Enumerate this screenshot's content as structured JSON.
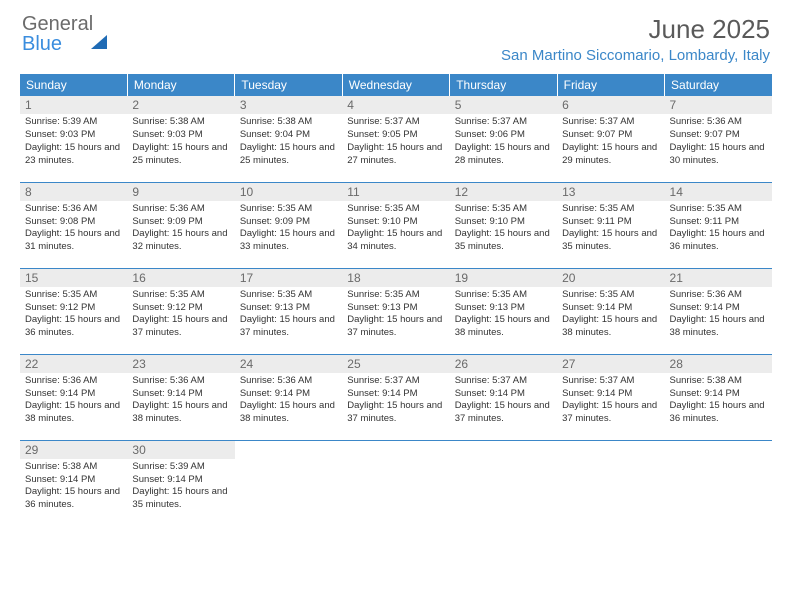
{
  "logo": {
    "text_gray": "General",
    "text_blue": "Blue"
  },
  "title": "June 2025",
  "location": "San Martino Siccomario, Lombardy, Italy",
  "colors": {
    "header_bg": "#3b87c8",
    "header_text": "#ffffff",
    "location_text": "#3b87c8",
    "title_text": "#5a5a5a",
    "daynum_bg": "#ececec",
    "cell_border": "#3b87c8",
    "body_text": "#333333"
  },
  "weekdays": [
    "Sunday",
    "Monday",
    "Tuesday",
    "Wednesday",
    "Thursday",
    "Friday",
    "Saturday"
  ],
  "days": [
    {
      "n": 1,
      "sunrise": "5:39 AM",
      "sunset": "9:03 PM",
      "daylight": "15 hours and 23 minutes."
    },
    {
      "n": 2,
      "sunrise": "5:38 AM",
      "sunset": "9:03 PM",
      "daylight": "15 hours and 25 minutes."
    },
    {
      "n": 3,
      "sunrise": "5:38 AM",
      "sunset": "9:04 PM",
      "daylight": "15 hours and 25 minutes."
    },
    {
      "n": 4,
      "sunrise": "5:37 AM",
      "sunset": "9:05 PM",
      "daylight": "15 hours and 27 minutes."
    },
    {
      "n": 5,
      "sunrise": "5:37 AM",
      "sunset": "9:06 PM",
      "daylight": "15 hours and 28 minutes."
    },
    {
      "n": 6,
      "sunrise": "5:37 AM",
      "sunset": "9:07 PM",
      "daylight": "15 hours and 29 minutes."
    },
    {
      "n": 7,
      "sunrise": "5:36 AM",
      "sunset": "9:07 PM",
      "daylight": "15 hours and 30 minutes."
    },
    {
      "n": 8,
      "sunrise": "5:36 AM",
      "sunset": "9:08 PM",
      "daylight": "15 hours and 31 minutes."
    },
    {
      "n": 9,
      "sunrise": "5:36 AM",
      "sunset": "9:09 PM",
      "daylight": "15 hours and 32 minutes."
    },
    {
      "n": 10,
      "sunrise": "5:35 AM",
      "sunset": "9:09 PM",
      "daylight": "15 hours and 33 minutes."
    },
    {
      "n": 11,
      "sunrise": "5:35 AM",
      "sunset": "9:10 PM",
      "daylight": "15 hours and 34 minutes."
    },
    {
      "n": 12,
      "sunrise": "5:35 AM",
      "sunset": "9:10 PM",
      "daylight": "15 hours and 35 minutes."
    },
    {
      "n": 13,
      "sunrise": "5:35 AM",
      "sunset": "9:11 PM",
      "daylight": "15 hours and 35 minutes."
    },
    {
      "n": 14,
      "sunrise": "5:35 AM",
      "sunset": "9:11 PM",
      "daylight": "15 hours and 36 minutes."
    },
    {
      "n": 15,
      "sunrise": "5:35 AM",
      "sunset": "9:12 PM",
      "daylight": "15 hours and 36 minutes."
    },
    {
      "n": 16,
      "sunrise": "5:35 AM",
      "sunset": "9:12 PM",
      "daylight": "15 hours and 37 minutes."
    },
    {
      "n": 17,
      "sunrise": "5:35 AM",
      "sunset": "9:13 PM",
      "daylight": "15 hours and 37 minutes."
    },
    {
      "n": 18,
      "sunrise": "5:35 AM",
      "sunset": "9:13 PM",
      "daylight": "15 hours and 37 minutes."
    },
    {
      "n": 19,
      "sunrise": "5:35 AM",
      "sunset": "9:13 PM",
      "daylight": "15 hours and 38 minutes."
    },
    {
      "n": 20,
      "sunrise": "5:35 AM",
      "sunset": "9:14 PM",
      "daylight": "15 hours and 38 minutes."
    },
    {
      "n": 21,
      "sunrise": "5:36 AM",
      "sunset": "9:14 PM",
      "daylight": "15 hours and 38 minutes."
    },
    {
      "n": 22,
      "sunrise": "5:36 AM",
      "sunset": "9:14 PM",
      "daylight": "15 hours and 38 minutes."
    },
    {
      "n": 23,
      "sunrise": "5:36 AM",
      "sunset": "9:14 PM",
      "daylight": "15 hours and 38 minutes."
    },
    {
      "n": 24,
      "sunrise": "5:36 AM",
      "sunset": "9:14 PM",
      "daylight": "15 hours and 38 minutes."
    },
    {
      "n": 25,
      "sunrise": "5:37 AM",
      "sunset": "9:14 PM",
      "daylight": "15 hours and 37 minutes."
    },
    {
      "n": 26,
      "sunrise": "5:37 AM",
      "sunset": "9:14 PM",
      "daylight": "15 hours and 37 minutes."
    },
    {
      "n": 27,
      "sunrise": "5:37 AM",
      "sunset": "9:14 PM",
      "daylight": "15 hours and 37 minutes."
    },
    {
      "n": 28,
      "sunrise": "5:38 AM",
      "sunset": "9:14 PM",
      "daylight": "15 hours and 36 minutes."
    },
    {
      "n": 29,
      "sunrise": "5:38 AM",
      "sunset": "9:14 PM",
      "daylight": "15 hours and 36 minutes."
    },
    {
      "n": 30,
      "sunrise": "5:39 AM",
      "sunset": "9:14 PM",
      "daylight": "15 hours and 35 minutes."
    }
  ],
  "labels": {
    "sunrise": "Sunrise:",
    "sunset": "Sunset:",
    "daylight": "Daylight:"
  },
  "layout": {
    "start_weekday": 0,
    "cols": 7
  }
}
